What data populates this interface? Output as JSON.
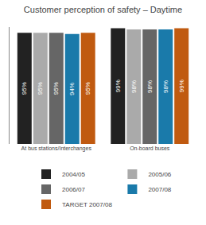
{
  "chart_data": {
    "type": "bar",
    "title": "Customer perception of safety – Daytime",
    "categories": [
      "At bus stations/Interchanges",
      "On-board buses"
    ],
    "series": [
      {
        "name": "2004/05",
        "color": "#222222",
        "values": [
          95,
          99
        ],
        "value_labels": [
          "95%",
          "99%"
        ]
      },
      {
        "name": "2005/06",
        "color": "#aaaaaa",
        "values": [
          95,
          98
        ],
        "value_labels": [
          "95%",
          "98%"
        ]
      },
      {
        "name": "2006/07",
        "color": "#666666",
        "values": [
          95,
          98
        ],
        "value_labels": [
          "95%",
          "98%"
        ]
      },
      {
        "name": "2007/08",
        "color": "#1a7aaa",
        "values": [
          94,
          98
        ],
        "value_labels": [
          "94%",
          "98%"
        ]
      },
      {
        "name": "TARGET 2007/08",
        "color": "#c05a10",
        "values": [
          95,
          99
        ],
        "value_labels": [
          "95%",
          "99%"
        ]
      }
    ],
    "ylim": [
      0,
      100
    ],
    "yticks": [],
    "tick_labels": "x",
    "data_labels": true,
    "legend": "bottom",
    "grid": false
  }
}
